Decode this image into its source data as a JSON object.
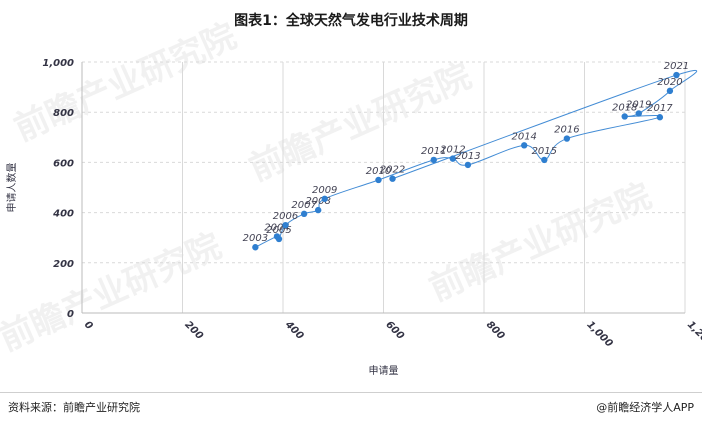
{
  "title": "图表1：全球天然气发电行业技术周期",
  "watermark": "前瞻产业研究院",
  "footer": {
    "source": "资料来源：前瞻产业研究院",
    "brand": "@前瞻经济学人APP"
  },
  "colors": {
    "accent": "#2f7fd0",
    "grid": "#d9d9d9",
    "text": "#333344"
  },
  "chart_data": {
    "type": "scatter",
    "title": "",
    "xlabel": "申请量",
    "ylabel": "申请人数量",
    "xlim": [
      0,
      1200
    ],
    "ylim": [
      0,
      1000
    ],
    "xticks": [
      "0",
      "200",
      "400",
      "600",
      "800",
      "1,000",
      "1,200"
    ],
    "yticks": [
      "0",
      "200",
      "400",
      "600",
      "800",
      "1,000"
    ],
    "xtick_values": [
      0,
      200,
      400,
      600,
      800,
      1000,
      1200
    ],
    "ytick_values": [
      0,
      200,
      400,
      600,
      800,
      1000
    ],
    "grid": {
      "vertical": true,
      "horizontal": "dashed"
    },
    "connected": true,
    "points": [
      {
        "label": "2003",
        "x": 345,
        "y": 262
      },
      {
        "label": "2004",
        "x": 388,
        "y": 305
      },
      {
        "label": "2005",
        "x": 392,
        "y": 295
      },
      {
        "label": "2006",
        "x": 405,
        "y": 350
      },
      {
        "label": "2007",
        "x": 442,
        "y": 395
      },
      {
        "label": "2008",
        "x": 470,
        "y": 410
      },
      {
        "label": "2009",
        "x": 483,
        "y": 455
      },
      {
        "label": "2010",
        "x": 590,
        "y": 530
      },
      {
        "label": "2011",
        "x": 700,
        "y": 610
      },
      {
        "label": "2012",
        "x": 738,
        "y": 615
      },
      {
        "label": "2013",
        "x": 768,
        "y": 590
      },
      {
        "label": "2014",
        "x": 880,
        "y": 668
      },
      {
        "label": "2015",
        "x": 920,
        "y": 610
      },
      {
        "label": "2016",
        "x": 965,
        "y": 695
      },
      {
        "label": "2017",
        "x": 1150,
        "y": 780
      },
      {
        "label": "2018",
        "x": 1080,
        "y": 783
      },
      {
        "label": "2019",
        "x": 1108,
        "y": 795
      },
      {
        "label": "2020",
        "x": 1170,
        "y": 885
      },
      {
        "label": "2021",
        "x": 1183,
        "y": 948
      },
      {
        "label": "2022",
        "x": 618,
        "y": 535
      }
    ]
  }
}
